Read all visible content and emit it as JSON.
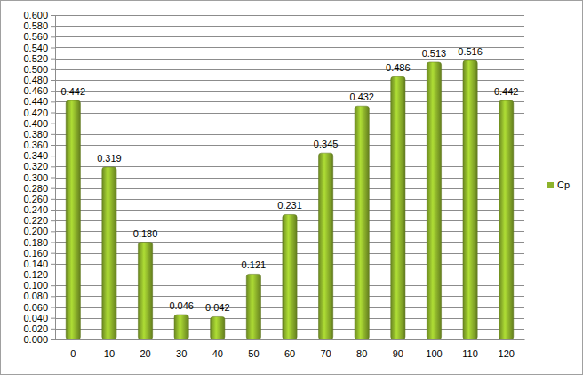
{
  "chart_data": {
    "type": "bar",
    "categories": [
      "0",
      "10",
      "20",
      "30",
      "40",
      "50",
      "60",
      "70",
      "80",
      "90",
      "100",
      "110",
      "120"
    ],
    "series": [
      {
        "name": "Cp",
        "color": "#8db32b",
        "values": [
          0.442,
          0.319,
          0.18,
          0.046,
          0.042,
          0.121,
          0.231,
          0.345,
          0.432,
          0.486,
          0.513,
          0.516,
          0.442
        ],
        "value_labels": [
          "0.442",
          "0.319",
          "0.180",
          "0.046",
          "0.042",
          "0.121",
          "0.231",
          "0.345",
          "0.432",
          "0.486",
          "0.513",
          "0.516",
          "0.442"
        ]
      }
    ],
    "ylim": [
      0,
      0.6
    ],
    "yticks": [
      {
        "value": 0,
        "label": "0.000"
      },
      {
        "value": 0.02,
        "label": "0.020"
      },
      {
        "value": 0.04,
        "label": "0.040"
      },
      {
        "value": 0.06,
        "label": "0.060"
      },
      {
        "value": 0.08,
        "label": "0.080"
      },
      {
        "value": 0.1,
        "label": "0.100"
      },
      {
        "value": 0.12,
        "label": "0.120"
      },
      {
        "value": 0.14,
        "label": "0.140"
      },
      {
        "value": 0.16,
        "label": "0.160"
      },
      {
        "value": 0.18,
        "label": "0.180"
      },
      {
        "value": 0.2,
        "label": "0.200"
      },
      {
        "value": 0.22,
        "label": "0.220"
      },
      {
        "value": 0.24,
        "label": "0.240"
      },
      {
        "value": 0.26,
        "label": "0.260"
      },
      {
        "value": 0.28,
        "label": "0.280"
      },
      {
        "value": 0.3,
        "label": "0.300"
      },
      {
        "value": 0.32,
        "label": "0.320"
      },
      {
        "value": 0.34,
        "label": "0.340"
      },
      {
        "value": 0.36,
        "label": "0.360"
      },
      {
        "value": 0.38,
        "label": "0.380"
      },
      {
        "value": 0.4,
        "label": "0.400"
      },
      {
        "value": 0.42,
        "label": "0.420"
      },
      {
        "value": 0.44,
        "label": "0.440"
      },
      {
        "value": 0.46,
        "label": "0.460"
      },
      {
        "value": 0.48,
        "label": "0.480"
      },
      {
        "value": 0.5,
        "label": "0.500"
      },
      {
        "value": 0.52,
        "label": "0.520"
      },
      {
        "value": 0.54,
        "label": "0.540"
      },
      {
        "value": 0.56,
        "label": "0.560"
      },
      {
        "value": 0.58,
        "label": "0.580"
      },
      {
        "value": 0.6,
        "label": "0.600"
      }
    ],
    "grid": true,
    "legend": "right",
    "data_labels": true
  }
}
